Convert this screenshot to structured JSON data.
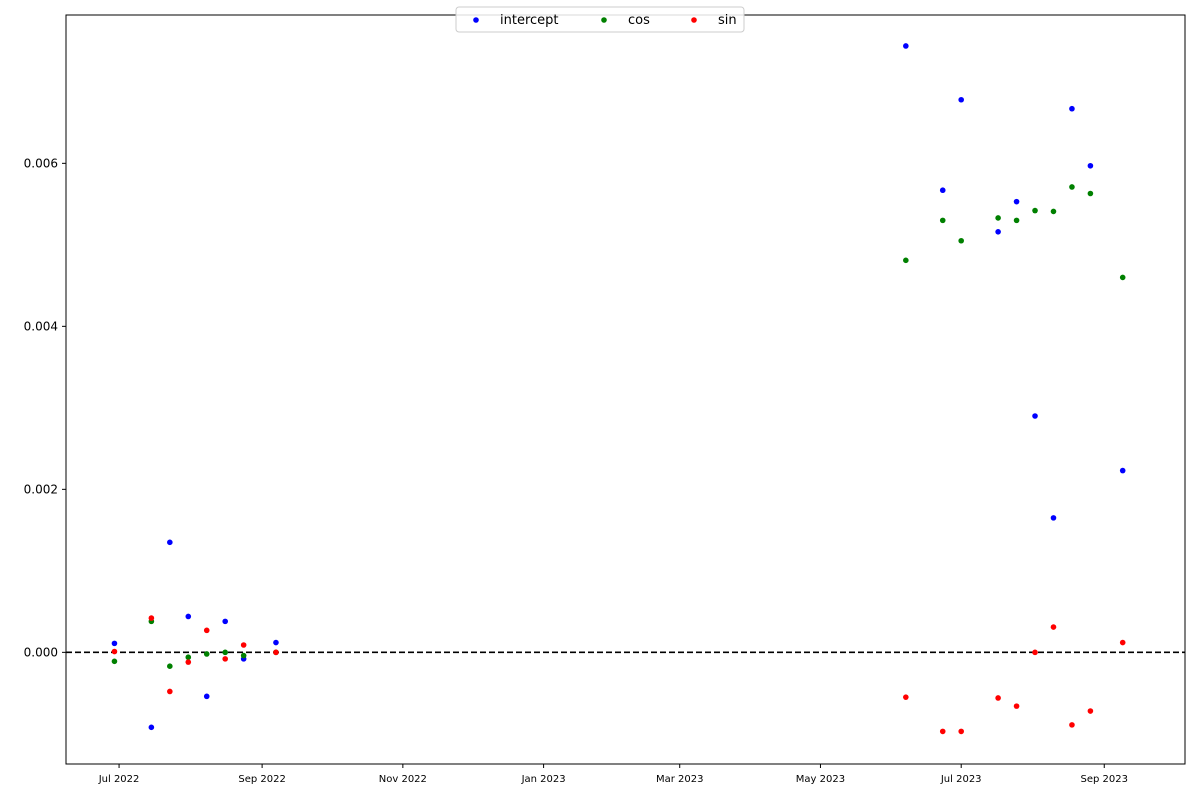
{
  "chart_data": {
    "type": "scatter",
    "x_axis": {
      "type": "date",
      "range": [
        "2022-06-08",
        "2023-10-06"
      ],
      "ticks": [
        {
          "date": "2022-07-01",
          "label": "Jul 2022"
        },
        {
          "date": "2022-09-01",
          "label": "Sep 2022"
        },
        {
          "date": "2022-11-01",
          "label": "Nov 2022"
        },
        {
          "date": "2023-01-01",
          "label": "Jan 2023"
        },
        {
          "date": "2023-03-01",
          "label": "Mar 2023"
        },
        {
          "date": "2023-05-01",
          "label": "May 2023"
        },
        {
          "date": "2023-07-01",
          "label": "Jul 2023"
        },
        {
          "date": "2023-09-01",
          "label": "Sep 2023"
        }
      ]
    },
    "y_axis": {
      "range": [
        -0.00137,
        0.00782
      ],
      "ticks": [
        {
          "value": 0.0,
          "label": "0.000"
        },
        {
          "value": 0.002,
          "label": "0.002"
        },
        {
          "value": 0.004,
          "label": "0.004"
        },
        {
          "value": 0.006,
          "label": "0.006"
        }
      ]
    },
    "reference_line": {
      "y": 0,
      "style": "dashed",
      "color": "#000000"
    },
    "grid": false,
    "legend": {
      "placement": "top-center",
      "columns": 3
    },
    "series": [
      {
        "name": "intercept",
        "color": "#0000ff",
        "points": [
          {
            "x": "2022-06-29",
            "y": 0.00011
          },
          {
            "x": "2022-07-15",
            "y": -0.00092
          },
          {
            "x": "2022-07-23",
            "y": 0.00135
          },
          {
            "x": "2022-07-31",
            "y": 0.00044
          },
          {
            "x": "2022-08-08",
            "y": -0.00054
          },
          {
            "x": "2022-08-16",
            "y": 0.00038
          },
          {
            "x": "2022-08-24",
            "y": -8e-05
          },
          {
            "x": "2022-09-07",
            "y": 0.00012
          },
          {
            "x": "2023-06-07",
            "y": 0.00744
          },
          {
            "x": "2023-06-23",
            "y": 0.00567
          },
          {
            "x": "2023-07-01",
            "y": 0.00678
          },
          {
            "x": "2023-07-17",
            "y": 0.00516
          },
          {
            "x": "2023-07-25",
            "y": 0.00553
          },
          {
            "x": "2023-08-02",
            "y": 0.0029
          },
          {
            "x": "2023-08-10",
            "y": 0.00165
          },
          {
            "x": "2023-08-18",
            "y": 0.00667
          },
          {
            "x": "2023-08-26",
            "y": 0.00597
          },
          {
            "x": "2023-09-09",
            "y": 0.00223
          }
        ]
      },
      {
        "name": "cos",
        "color": "#008000",
        "points": [
          {
            "x": "2022-06-29",
            "y": -0.00011
          },
          {
            "x": "2022-07-15",
            "y": 0.00038
          },
          {
            "x": "2022-07-23",
            "y": -0.00017
          },
          {
            "x": "2022-07-31",
            "y": -6e-05
          },
          {
            "x": "2022-08-08",
            "y": -2e-05
          },
          {
            "x": "2022-08-16",
            "y": 0.0
          },
          {
            "x": "2022-08-24",
            "y": -4e-05
          },
          {
            "x": "2022-09-07",
            "y": 0.0
          },
          {
            "x": "2023-06-07",
            "y": 0.00481
          },
          {
            "x": "2023-06-23",
            "y": 0.0053
          },
          {
            "x": "2023-07-01",
            "y": 0.00505
          },
          {
            "x": "2023-07-17",
            "y": 0.00533
          },
          {
            "x": "2023-07-25",
            "y": 0.0053
          },
          {
            "x": "2023-08-02",
            "y": 0.00542
          },
          {
            "x": "2023-08-10",
            "y": 0.00541
          },
          {
            "x": "2023-08-18",
            "y": 0.00571
          },
          {
            "x": "2023-08-26",
            "y": 0.00563
          },
          {
            "x": "2023-09-09",
            "y": 0.0046
          }
        ]
      },
      {
        "name": "sin",
        "color": "#ff0000",
        "points": [
          {
            "x": "2022-06-29",
            "y": 1e-05
          },
          {
            "x": "2022-07-15",
            "y": 0.00042
          },
          {
            "x": "2022-07-23",
            "y": -0.00048
          },
          {
            "x": "2022-07-31",
            "y": -0.00012
          },
          {
            "x": "2022-08-08",
            "y": 0.00027
          },
          {
            "x": "2022-08-16",
            "y": -8e-05
          },
          {
            "x": "2022-08-24",
            "y": 9e-05
          },
          {
            "x": "2022-09-07",
            "y": 0.0
          },
          {
            "x": "2023-06-07",
            "y": -0.00055
          },
          {
            "x": "2023-06-23",
            "y": -0.00097
          },
          {
            "x": "2023-07-01",
            "y": -0.00097
          },
          {
            "x": "2023-07-17",
            "y": -0.00056
          },
          {
            "x": "2023-07-25",
            "y": -0.00066
          },
          {
            "x": "2023-08-02",
            "y": 0.0
          },
          {
            "x": "2023-08-10",
            "y": 0.00031
          },
          {
            "x": "2023-08-18",
            "y": -0.00089
          },
          {
            "x": "2023-08-26",
            "y": -0.00072
          },
          {
            "x": "2023-09-09",
            "y": 0.00012
          }
        ]
      }
    ]
  }
}
